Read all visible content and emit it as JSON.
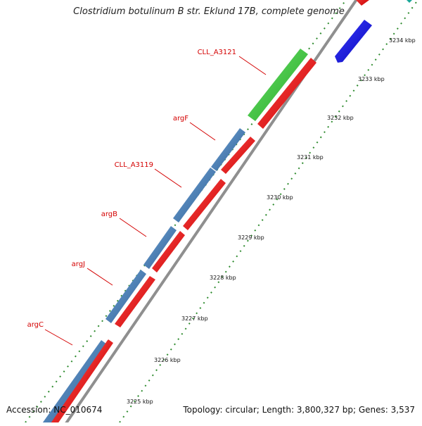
{
  "title": "Clostridium botulinum B str. Eklund 17B, complete genome",
  "accession": "Accession: NC_010674",
  "topology": "Topology: circular; Length: 3,800,327 bp; Genes: 3,537",
  "colors": {
    "backbone": "#8f8f8f",
    "forward_gene": "#4a82b8",
    "reverse_gene": "#ee1111",
    "rna_gene": "#44cc44",
    "other_gene": "#1818e8",
    "ticks": "#2e8b2e",
    "label_text": "#d40000"
  },
  "scale_labels": [
    "3225 kbp",
    "3226 kbp",
    "3227 kbp",
    "3228 kbp",
    "3229 kbp",
    "3230 kbp",
    "3231 kbp",
    "3232 kbp",
    "3233 kbp",
    "3234 kbp"
  ],
  "gene_labels": [
    "CLL_A3121",
    "argF",
    "CLL_A3119",
    "argB",
    "argJ",
    "argC"
  ]
}
